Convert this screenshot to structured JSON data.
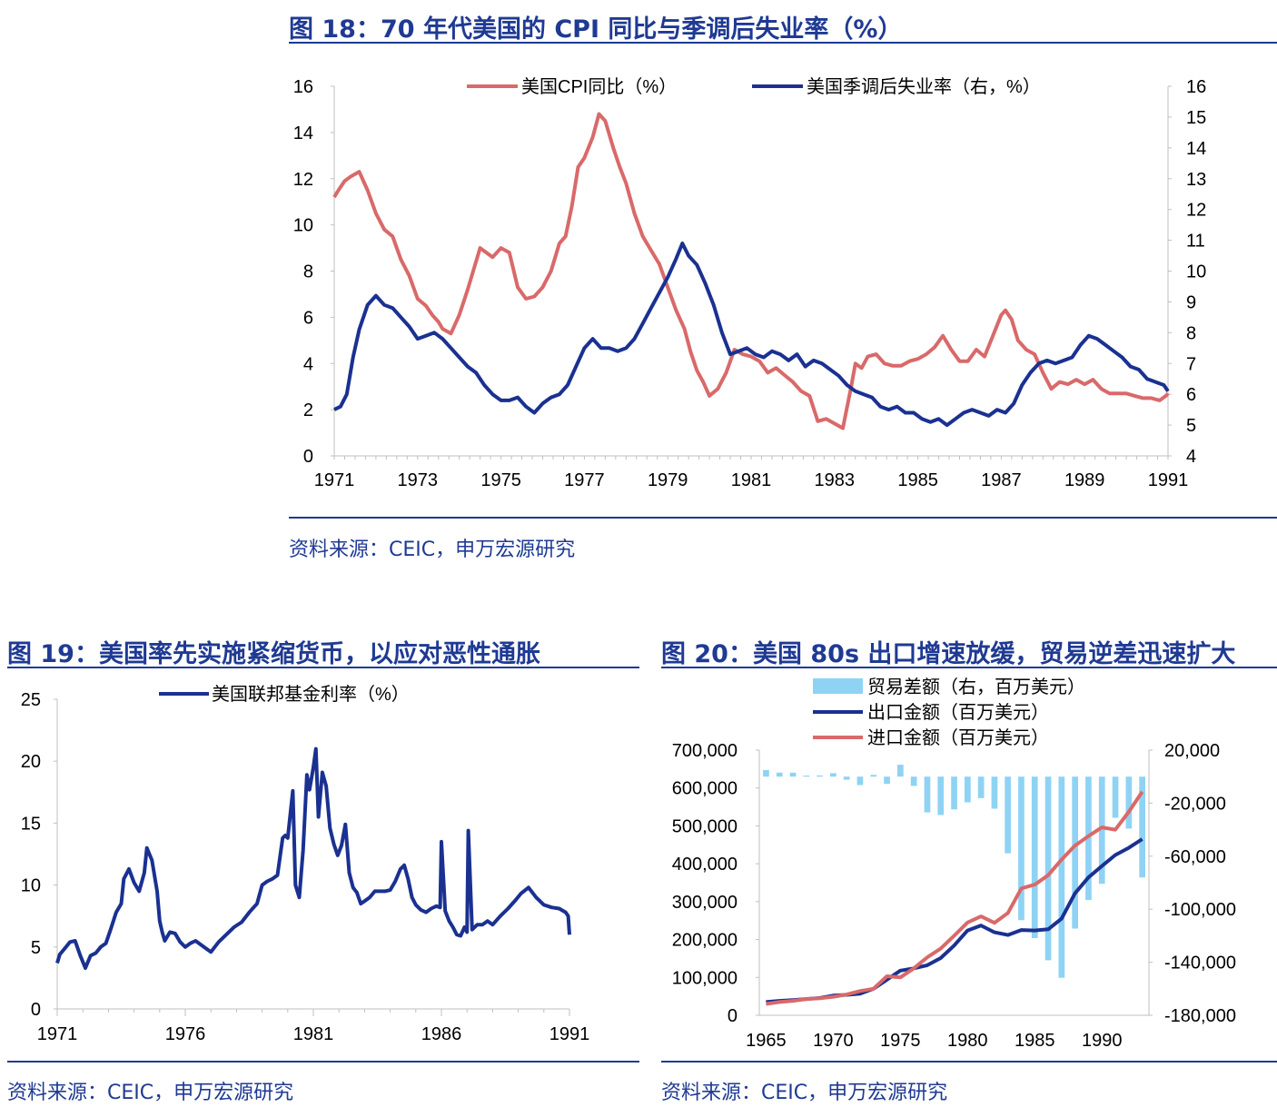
{
  "colors": {
    "title": "#1f3a93",
    "cpi": "#d9696a",
    "unemp": "#1a3191",
    "fed": "#1a3191",
    "balance": "#8fd3f4",
    "export": "#1a3191",
    "import": "#d9696a"
  },
  "fig18": {
    "title": "图 18：70 年代美国的 CPI 同比与季调后失业率（%）",
    "source": "资料来源：CEIC，申万宏源研究",
    "chart_data": {
      "type": "line",
      "x_ticks": [
        "1971",
        "1973",
        "1975",
        "1977",
        "1979",
        "1981",
        "1983",
        "1985",
        "1987",
        "1989",
        "1991"
      ],
      "y_left": {
        "lim": [
          0,
          16
        ],
        "ticks": [
          "0",
          "2",
          "4",
          "6",
          "8",
          "10",
          "12",
          "14",
          "16"
        ]
      },
      "y_right": {
        "lim": [
          4,
          16
        ],
        "ticks": [
          "4",
          "5",
          "6",
          "7",
          "8",
          "9",
          "10",
          "11",
          "12",
          "13",
          "14",
          "15",
          "16"
        ]
      },
      "series": [
        {
          "name": "美国CPI同比（%）",
          "axis": "left",
          "x": [
            1971.0,
            1971.1,
            1971.25,
            1971.4,
            1971.6,
            1971.8,
            1972.0,
            1972.2,
            1972.4,
            1972.6,
            1972.8,
            1973.0,
            1973.2,
            1973.35,
            1973.5,
            1973.6,
            1973.8,
            1974.0,
            1974.2,
            1974.5,
            1974.8,
            1975.0,
            1975.2,
            1975.4,
            1975.6,
            1975.8,
            1976.0,
            1976.2,
            1976.4,
            1976.55,
            1976.7,
            1976.85,
            1977.0,
            1977.2,
            1977.35,
            1977.5,
            1977.7,
            1977.85,
            1978.0,
            1978.2,
            1978.4,
            1978.6,
            1978.8,
            1979.0,
            1979.2,
            1979.4,
            1979.55,
            1979.7,
            1979.85,
            1980.0,
            1980.2,
            1980.4,
            1980.6,
            1980.8,
            1981.0,
            1981.2,
            1981.4,
            1981.6,
            1981.8,
            1982.0,
            1982.2,
            1982.4,
            1982.6,
            1982.8,
            1983.0,
            1983.2,
            1983.4,
            1983.5,
            1983.65,
            1983.8,
            1984.0,
            1984.2,
            1984.4,
            1984.6,
            1984.8,
            1985.0,
            1985.2,
            1985.4,
            1985.6,
            1985.8,
            1986.0,
            1986.2,
            1986.4,
            1986.6,
            1986.8,
            1987.0,
            1987.1,
            1987.25,
            1987.4,
            1987.6,
            1987.8,
            1988.0,
            1988.2,
            1988.4,
            1988.6,
            1988.8,
            1989.0,
            1989.2,
            1989.4,
            1989.6,
            1989.8,
            1990.0,
            1990.2,
            1990.4,
            1990.6,
            1990.8,
            1990.95,
            1991.0
          ],
          "values": [
            11.2,
            11.5,
            11.9,
            12.1,
            12.3,
            11.5,
            10.5,
            9.8,
            9.5,
            8.5,
            7.8,
            6.8,
            6.5,
            6.1,
            5.8,
            5.5,
            5.3,
            6.1,
            7.2,
            9.0,
            8.6,
            9.0,
            8.8,
            7.3,
            6.8,
            6.9,
            7.3,
            8.0,
            9.2,
            9.5,
            10.8,
            12.5,
            12.9,
            13.8,
            14.8,
            14.5,
            13.3,
            12.5,
            11.8,
            10.5,
            9.5,
            8.9,
            8.3,
            7.3,
            6.3,
            5.5,
            4.5,
            3.7,
            3.2,
            2.6,
            2.9,
            3.6,
            4.6,
            4.4,
            4.3,
            4.1,
            3.6,
            3.8,
            3.5,
            3.2,
            2.8,
            2.6,
            1.5,
            1.6,
            1.4,
            1.2,
            3.0,
            4.0,
            3.8,
            4.3,
            4.4,
            4.0,
            3.9,
            3.9,
            4.1,
            4.2,
            4.4,
            4.7,
            5.2,
            4.6,
            4.1,
            4.1,
            4.6,
            4.3,
            5.2,
            6.1,
            6.3,
            5.9,
            5.0,
            4.6,
            4.4,
            3.6,
            2.9,
            3.2,
            3.1,
            3.3,
            3.1,
            3.3,
            2.9,
            2.7,
            2.7,
            2.7,
            2.6,
            2.5,
            2.5,
            2.4,
            2.6,
            2.7
          ]
        },
        {
          "name": "美国季调后失业率（右，%）",
          "axis": "right",
          "x": [
            1971.0,
            1971.15,
            1971.3,
            1971.45,
            1971.6,
            1971.8,
            1972.0,
            1972.2,
            1972.4,
            1972.6,
            1972.8,
            1973.0,
            1973.2,
            1973.4,
            1973.6,
            1973.8,
            1974.0,
            1974.2,
            1974.4,
            1974.6,
            1974.8,
            1975.0,
            1975.2,
            1975.4,
            1975.6,
            1975.8,
            1976.0,
            1976.2,
            1976.4,
            1976.6,
            1976.8,
            1977.0,
            1977.2,
            1977.4,
            1977.6,
            1977.8,
            1978.0,
            1978.2,
            1978.4,
            1978.6,
            1978.8,
            1979.0,
            1979.2,
            1979.35,
            1979.5,
            1979.7,
            1979.9,
            1980.1,
            1980.3,
            1980.5,
            1980.7,
            1980.9,
            1981.1,
            1981.3,
            1981.5,
            1981.7,
            1981.9,
            1982.1,
            1982.3,
            1982.5,
            1982.7,
            1982.9,
            1983.1,
            1983.3,
            1983.5,
            1983.7,
            1983.9,
            1984.1,
            1984.3,
            1984.5,
            1984.7,
            1984.9,
            1985.1,
            1985.3,
            1985.5,
            1985.7,
            1985.9,
            1986.1,
            1986.3,
            1986.5,
            1986.7,
            1986.9,
            1987.1,
            1987.3,
            1987.5,
            1987.7,
            1987.9,
            1988.1,
            1988.3,
            1988.5,
            1988.7,
            1988.9,
            1989.1,
            1989.3,
            1989.5,
            1989.7,
            1989.9,
            1990.1,
            1990.3,
            1990.5,
            1990.7,
            1990.9,
            1991.0
          ],
          "values": [
            5.5,
            5.6,
            6.0,
            7.2,
            8.1,
            8.9,
            9.2,
            8.9,
            8.8,
            8.5,
            8.2,
            7.8,
            7.9,
            8.0,
            7.8,
            7.5,
            7.2,
            6.9,
            6.7,
            6.3,
            6.0,
            5.8,
            5.8,
            5.9,
            5.6,
            5.4,
            5.7,
            5.9,
            6.0,
            6.3,
            6.9,
            7.5,
            7.8,
            7.5,
            7.5,
            7.4,
            7.5,
            7.8,
            8.3,
            8.8,
            9.3,
            9.8,
            10.4,
            10.9,
            10.5,
            10.2,
            9.6,
            8.9,
            8.0,
            7.3,
            7.4,
            7.5,
            7.3,
            7.2,
            7.4,
            7.3,
            7.1,
            7.3,
            6.9,
            7.1,
            7.0,
            6.8,
            6.6,
            6.3,
            6.1,
            6.0,
            5.9,
            5.6,
            5.5,
            5.6,
            5.4,
            5.4,
            5.2,
            5.1,
            5.2,
            5.0,
            5.2,
            5.4,
            5.5,
            5.4,
            5.3,
            5.5,
            5.4,
            5.7,
            6.3,
            6.7,
            7.0,
            7.1,
            7.0,
            7.1,
            7.2,
            7.6,
            7.9,
            7.8,
            7.6,
            7.4,
            7.2,
            6.9,
            6.8,
            6.5,
            6.4,
            6.3,
            6.1
          ]
        }
      ]
    }
  },
  "fig19": {
    "title": "图 19：美国率先实施紧缩货币，以应对恶性通胀",
    "source": "资料来源：CEIC，申万宏源研究",
    "chart_data": {
      "type": "line",
      "x_ticks": [
        "1971",
        "1976",
        "1981",
        "1986",
        "1991"
      ],
      "y": {
        "lim": [
          0,
          25
        ],
        "ticks": [
          "0",
          "5",
          "10",
          "15",
          "20",
          "25"
        ]
      },
      "series": [
        {
          "name": "美国联邦基金利率（%）",
          "x": [
            1971.0,
            1971.1,
            1971.3,
            1971.5,
            1971.7,
            1971.9,
            1972.1,
            1972.3,
            1972.5,
            1972.7,
            1972.9,
            1973.1,
            1973.3,
            1973.5,
            1973.6,
            1973.8,
            1974.0,
            1974.2,
            1974.4,
            1974.5,
            1974.7,
            1974.9,
            1975.0,
            1975.1,
            1975.2,
            1975.4,
            1975.6,
            1975.8,
            1976.0,
            1976.2,
            1976.4,
            1976.6,
            1976.8,
            1977.0,
            1977.3,
            1977.6,
            1977.9,
            1978.2,
            1978.5,
            1978.8,
            1979.0,
            1979.2,
            1979.4,
            1979.6,
            1979.8,
            1979.9,
            1980.0,
            1980.2,
            1980.3,
            1980.45,
            1980.6,
            1980.75,
            1980.85,
            1981.0,
            1981.1,
            1981.2,
            1981.35,
            1981.5,
            1981.65,
            1981.8,
            1981.95,
            1982.1,
            1982.25,
            1982.4,
            1982.55,
            1982.7,
            1982.85,
            1983.0,
            1983.2,
            1983.4,
            1983.6,
            1983.8,
            1984.0,
            1984.2,
            1984.4,
            1984.55,
            1984.7,
            1984.85,
            1985.0,
            1985.2,
            1985.4,
            1985.6,
            1985.8,
            1985.95,
            1986.0,
            1986.15,
            1986.3,
            1986.45,
            1986.6,
            1986.75,
            1986.9,
            1987.0,
            1987.05,
            1987.2,
            1987.4,
            1987.6,
            1987.8,
            1988.0,
            1988.3,
            1988.6,
            1988.9,
            1989.1,
            1989.4,
            1989.7,
            1990.0,
            1990.3,
            1990.6,
            1990.85,
            1990.95,
            1991.0
          ],
          "values": [
            3.7,
            4.4,
            4.9,
            5.4,
            5.5,
            4.3,
            3.3,
            4.3,
            4.5,
            5.0,
            5.3,
            6.5,
            7.8,
            8.5,
            10.5,
            11.3,
            10.2,
            9.5,
            11.0,
            13.0,
            12.0,
            9.5,
            7.1,
            6.2,
            5.5,
            6.2,
            6.1,
            5.4,
            5.0,
            5.3,
            5.5,
            5.2,
            4.9,
            4.6,
            5.4,
            6.0,
            6.6,
            7.0,
            7.8,
            8.5,
            10.0,
            10.3,
            10.5,
            10.8,
            13.8,
            14.0,
            13.8,
            17.6,
            10.0,
            9.0,
            12.8,
            18.9,
            17.7,
            19.5,
            21.0,
            15.5,
            19.1,
            18.0,
            14.6,
            13.3,
            12.4,
            13.2,
            14.9,
            11.0,
            9.8,
            9.4,
            8.5,
            8.7,
            9.0,
            9.5,
            9.5,
            9.5,
            9.6,
            10.3,
            11.3,
            11.6,
            10.5,
            9.0,
            8.4,
            8.0,
            7.8,
            8.1,
            8.3,
            8.2,
            13.5,
            7.9,
            7.1,
            6.6,
            6.0,
            5.9,
            6.6,
            6.2,
            14.4,
            6.4,
            6.8,
            6.8,
            7.1,
            6.8,
            7.5,
            8.1,
            8.8,
            9.3,
            9.8,
            9.0,
            8.4,
            8.2,
            8.1,
            7.8,
            7.5,
            6.0
          ]
        }
      ]
    }
  },
  "fig20": {
    "title": "图 20：美国 80s 出口增速放缓，贸易逆差迅速扩大",
    "source": "资料来源：CEIC，申万宏源研究",
    "chart_data": {
      "type": "bar",
      "x_ticks": [
        "1965",
        "1970",
        "1975",
        "1980",
        "1985",
        "1990"
      ],
      "years": [
        1965,
        1966,
        1967,
        1968,
        1969,
        1970,
        1971,
        1972,
        1973,
        1974,
        1975,
        1976,
        1977,
        1978,
        1979,
        1980,
        1981,
        1982,
        1983,
        1984,
        1985,
        1986,
        1987,
        1988,
        1989,
        1990,
        1991,
        1992,
        1993
      ],
      "y_left": {
        "lim": [
          0,
          700000
        ],
        "ticks": [
          "0",
          "100,000",
          "200,000",
          "300,000",
          "400,000",
          "500,000",
          "600,000",
          "700,000"
        ]
      },
      "y_right": {
        "lim": [
          -180000,
          20000
        ],
        "ticks": [
          "-180,000",
          "-140,000",
          "-100,000",
          "-60,000",
          "-20,000",
          "20,000"
        ]
      },
      "series": [
        {
          "name": "贸易差额（右，百万美元）",
          "axis": "right",
          "kind": "bar",
          "values": [
            5000,
            3000,
            3000,
            800,
            900,
            2600,
            -2300,
            -6400,
            1300,
            -5500,
            9000,
            -7000,
            -27000,
            -29000,
            -24700,
            -19400,
            -16200,
            -24200,
            -57800,
            -108300,
            -121800,
            -138500,
            -151700,
            -114600,
            -93100,
            -80800,
            -31000,
            -39200,
            -76000
          ]
        },
        {
          "name": "出口金额（百万美元）",
          "axis": "left",
          "kind": "line",
          "values": [
            35000,
            38000,
            40000,
            43000,
            45500,
            52000,
            54000,
            57000,
            70000,
            94000,
            118000,
            124000,
            132000,
            151000,
            184000,
            224000,
            237000,
            219000,
            212000,
            225000,
            224000,
            227000,
            255000,
            322000,
            364000,
            394000,
            423000,
            442000,
            465000
          ]
        },
        {
          "name": "进口金额（百万美元）",
          "axis": "left",
          "kind": "line",
          "values": [
            30000,
            35000,
            38000,
            43000,
            45000,
            49000,
            55000,
            64000,
            70000,
            103000,
            100000,
            124000,
            153000,
            176000,
            210000,
            245000,
            261000,
            244000,
            270000,
            335000,
            345000,
            370000,
            411000,
            448000,
            473000,
            496000,
            490000,
            537000,
            590000
          ]
        }
      ]
    }
  }
}
